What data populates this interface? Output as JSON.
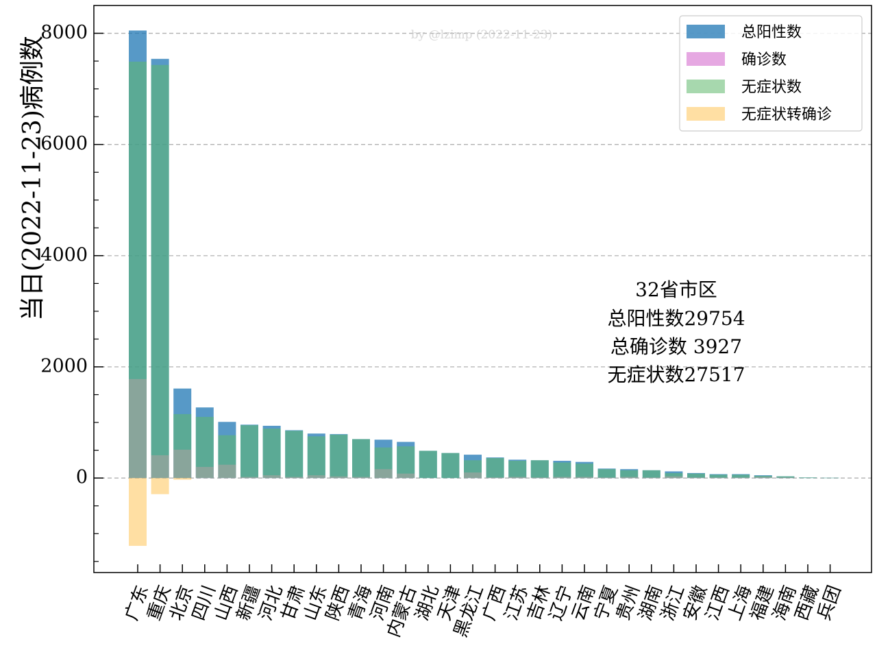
{
  "chart_data": {
    "type": "bar",
    "watermark": "by @lzimp (2022-11-23)",
    "ylabel": "当日(2022-11-23)病例数",
    "ylim": [
      -1700,
      8500
    ],
    "yticks": [
      0,
      2000,
      4000,
      6000,
      8000
    ],
    "grid": "horizontal dashed",
    "legend_position": "top-right",
    "categories": [
      "广东",
      "重庆",
      "北京",
      "四川",
      "山西",
      "新疆",
      "河北",
      "甘肃",
      "山东",
      "陕西",
      "青海",
      "河南",
      "内蒙古",
      "湖北",
      "天津",
      "黑龙江",
      "广西",
      "江苏",
      "吉林",
      "辽宁",
      "云南",
      "宁夏",
      "贵州",
      "湖南",
      "浙江",
      "安徽",
      "江西",
      "上海",
      "福建",
      "海南",
      "西藏",
      "兵团"
    ],
    "series": [
      {
        "name": "总阳性数",
        "color": "#1f77b4",
        "values": [
          8050,
          7540,
          1610,
          1270,
          1010,
          960,
          940,
          860,
          800,
          790,
          700,
          690,
          650,
          490,
          450,
          420,
          370,
          330,
          320,
          310,
          290,
          170,
          160,
          140,
          120,
          90,
          70,
          70,
          50,
          30,
          10,
          5
        ]
      },
      {
        "name": "确诊数",
        "color": "#dd8bd8",
        "values": [
          1780,
          410,
          510,
          200,
          240,
          20,
          50,
          20,
          50,
          30,
          20,
          160,
          80,
          0,
          0,
          100,
          10,
          20,
          10,
          20,
          20,
          10,
          20,
          10,
          30,
          10,
          10,
          10,
          20,
          10,
          0,
          0
        ]
      },
      {
        "name": "无症状数",
        "color": "#5fb86b",
        "values": [
          7490,
          7430,
          1150,
          1100,
          770,
          950,
          890,
          850,
          750,
          780,
          700,
          550,
          570,
          490,
          450,
          320,
          360,
          310,
          320,
          280,
          260,
          160,
          140,
          140,
          90,
          80,
          60,
          60,
          40,
          30,
          10,
          5
        ]
      },
      {
        "name": "无症状转确诊",
        "color": "#ffc966",
        "values": [
          -1220,
          -290,
          -30,
          0,
          0,
          0,
          0,
          0,
          0,
          0,
          0,
          0,
          0,
          0,
          0,
          0,
          0,
          0,
          0,
          0,
          0,
          0,
          0,
          0,
          0,
          0,
          0,
          0,
          0,
          0,
          0,
          0
        ]
      }
    ],
    "annotation": {
      "line1": "32省市区",
      "line2": "总阳性数29754",
      "line3": "总确诊数 3927",
      "line4": "无症状数27517"
    }
  }
}
